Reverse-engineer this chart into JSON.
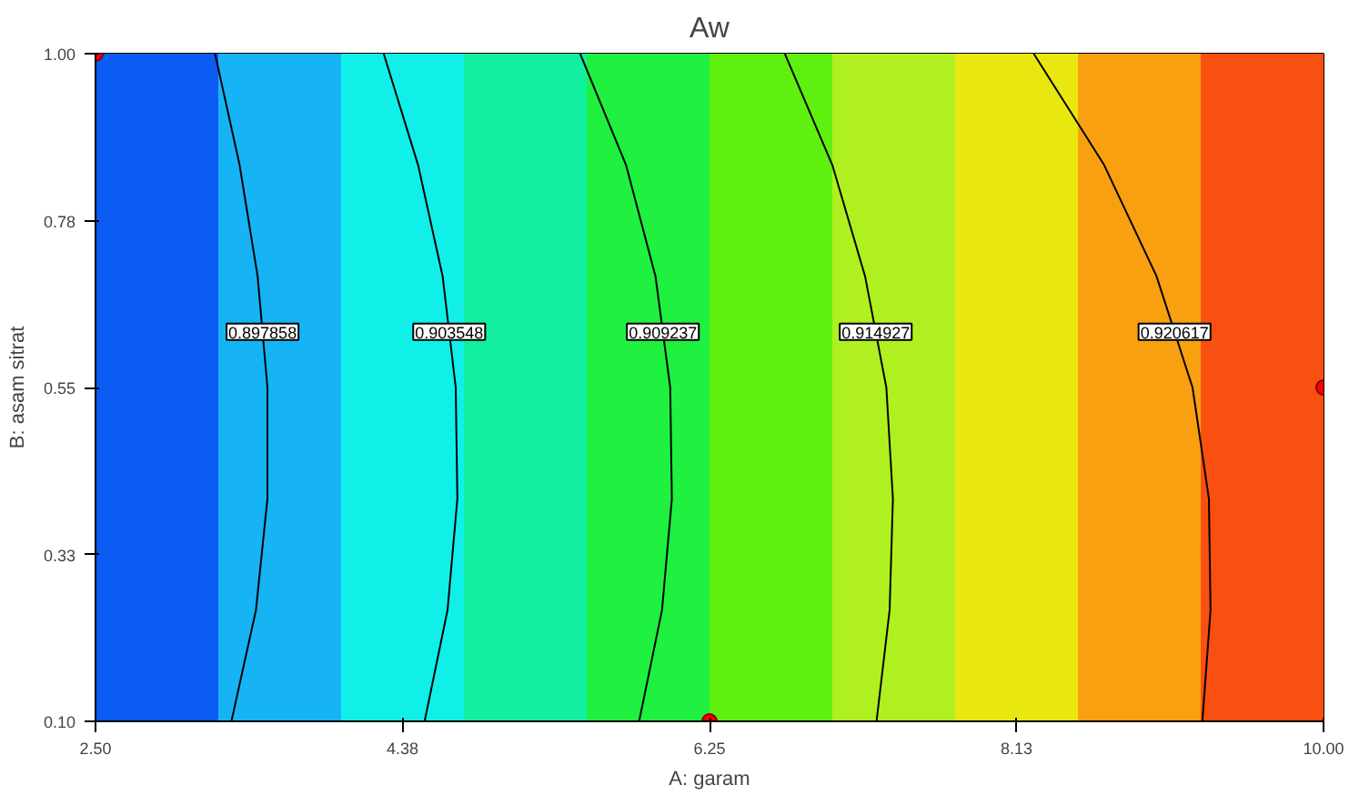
{
  "chart_data": {
    "type": "line",
    "title": "Aw",
    "xlabel": "A: garam",
    "ylabel": "B: asam sitrat",
    "xlim": [
      2.5,
      10.0
    ],
    "ylim": [
      0.1,
      1.0
    ],
    "xticks": [
      {
        "value": 2.5,
        "label": "2.50"
      },
      {
        "value": 4.375,
        "label": "4.38"
      },
      {
        "value": 6.25,
        "label": "6.25"
      },
      {
        "value": 8.125,
        "label": "8.13"
      },
      {
        "value": 10.0,
        "label": "10.00"
      }
    ],
    "yticks": [
      {
        "value": 0.1,
        "label": "0.10"
      },
      {
        "value": 0.325,
        "label": "0.33"
      },
      {
        "value": 0.55,
        "label": "0.55"
      },
      {
        "value": 0.775,
        "label": "0.78"
      },
      {
        "value": 1.0,
        "label": "1.00"
      }
    ],
    "marker": "none",
    "line_style": "solid",
    "series": [
      {
        "name": "0.897858",
        "color": "#000000",
        "x": [
          3.33,
          3.48,
          3.55,
          3.55,
          3.49,
          3.38,
          3.23
        ],
        "values": [
          0.1,
          0.25,
          0.4,
          0.55,
          0.7,
          0.85,
          1.0
        ]
      },
      {
        "name": "0.903548",
        "color": "#000000",
        "x": [
          4.51,
          4.65,
          4.71,
          4.7,
          4.62,
          4.47,
          4.26
        ],
        "values": [
          0.1,
          0.25,
          0.4,
          0.55,
          0.7,
          0.85,
          1.0
        ]
      },
      {
        "name": "0.909237",
        "color": "#000000",
        "x": [
          5.82,
          5.96,
          6.02,
          6.01,
          5.92,
          5.74,
          5.46
        ],
        "values": [
          0.1,
          0.25,
          0.4,
          0.55,
          0.7,
          0.85,
          1.0
        ]
      },
      {
        "name": "0.914927",
        "color": "#000000",
        "x": [
          7.27,
          7.35,
          7.37,
          7.33,
          7.2,
          7.0,
          6.71
        ],
        "values": [
          0.1,
          0.25,
          0.4,
          0.55,
          0.7,
          0.85,
          1.0
        ]
      },
      {
        "name": "0.920617",
        "color": "#000000",
        "x": [
          9.26,
          9.31,
          9.3,
          9.2,
          8.98,
          8.66,
          8.23
        ],
        "values": [
          0.1,
          0.25,
          0.4,
          0.55,
          0.7,
          0.85,
          1.0
        ]
      },
      {
        "type": "scatter",
        "marker": "circle",
        "color": "#ff0000",
        "x": [
          2.5,
          6.25,
          10.0
        ],
        "values": [
          1.0,
          0.1,
          0.55
        ]
      }
    ],
    "bands": [
      {
        "axis": "x",
        "from": 2.5,
        "to": 3.25,
        "color": "#0a5cf5"
      },
      {
        "axis": "x",
        "from": 3.25,
        "to": 4.0,
        "color": "#16b4f5"
      },
      {
        "axis": "x",
        "from": 4.0,
        "to": 4.75,
        "color": "#10f0e8"
      },
      {
        "axis": "x",
        "from": 4.75,
        "to": 5.5,
        "color": "#10f0a0"
      },
      {
        "axis": "x",
        "from": 5.5,
        "to": 6.25,
        "color": "#20f040"
      },
      {
        "axis": "x",
        "from": 6.25,
        "to": 7.0,
        "color": "#60f010"
      },
      {
        "axis": "x",
        "from": 7.0,
        "to": 7.75,
        "color": "#b0f020"
      },
      {
        "axis": "x",
        "from": 7.75,
        "to": 8.5,
        "color": "#e8e810"
      },
      {
        "axis": "x",
        "from": 8.5,
        "to": 9.25,
        "color": "#f8a010"
      },
      {
        "axis": "x",
        "from": 9.25,
        "to": 10.0,
        "color": "#f85010"
      }
    ]
  }
}
